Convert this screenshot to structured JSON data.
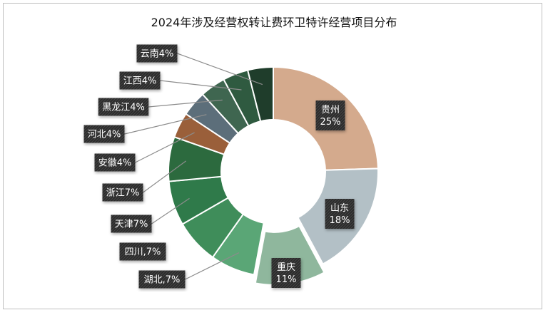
{
  "chart_data": {
    "type": "pie",
    "title": "2024年涉及经营权转让费环卫特许经营项目分布",
    "categories": [
      "贵州",
      "山东",
      "重庆",
      "湖北",
      "四川",
      "天津",
      "浙江",
      "安徽",
      "河北",
      "黑龙江",
      "江西",
      "云南"
    ],
    "values": [
      25,
      18,
      11,
      7,
      7,
      7,
      7,
      4,
      4,
      4,
      4,
      4
    ],
    "labels": [
      "贵州\n25%",
      "山东\n18%",
      "重庆\n11%",
      "湖北,7%",
      "四川,7%",
      "天津7%",
      "浙江7%",
      "安徽4%",
      "河北4%",
      "黑龙江4%",
      "江西4%",
      "云南4%"
    ],
    "colors": [
      "#d4aa8d",
      "#b3c0c6",
      "#8fb79d",
      "#5aa676",
      "#3f8d5a",
      "#2f7a4a",
      "#2c6a3e",
      "#9a5f3a",
      "#5c6e7a",
      "#3f6650",
      "#2f5a40",
      "#1f3d2b"
    ],
    "exploded": [
      "重庆"
    ],
    "legend": "none"
  }
}
